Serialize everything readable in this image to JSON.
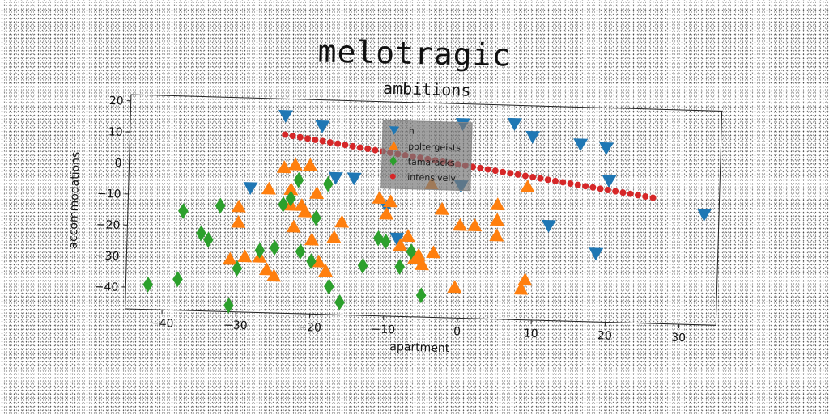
{
  "page": {
    "title": "melotragic"
  },
  "chart_data": {
    "type": "scatter",
    "title": "ambitions",
    "xlabel": "apartment",
    "ylabel": "accommodations",
    "xlim": [
      -45,
      35
    ],
    "ylim": [
      -47,
      22
    ],
    "xticks": [
      -40,
      -30,
      -20,
      -10,
      0,
      10,
      20,
      30
    ],
    "yticks": [
      20,
      10,
      0,
      -10,
      -20,
      -30,
      -40
    ],
    "grid": false,
    "legend_position": "top-center",
    "series": [
      {
        "name": "h",
        "marker": "triangle-down",
        "color": "#1f77b4",
        "x": [
          -24,
          -19,
          -28.5,
          -17,
          -14.5,
          0,
          0,
          7,
          9.5,
          16,
          19.5,
          20,
          12,
          33,
          18.5,
          -10,
          -8.5
        ],
        "y": [
          16.5,
          13.5,
          -7,
          -3,
          -3,
          15.5,
          -4.5,
          16,
          12,
          10,
          9,
          -1.5,
          -16.5,
          -11.5,
          -25,
          -12,
          -22
        ]
      },
      {
        "name": "poltergeists",
        "marker": "triangle-up",
        "color": "#ff7f0e",
        "x": [
          -24,
          -22.5,
          -20.5,
          -26,
          -23,
          -23,
          -21.5,
          -21,
          -19.5,
          -30,
          -30,
          -31,
          -29,
          -27,
          -26,
          -22.5,
          -20,
          -19,
          -18,
          -17,
          -16,
          -11,
          -9.5,
          -10,
          -8,
          -7,
          -5.5,
          -3.5,
          -2.5,
          0,
          2,
          5,
          5,
          5,
          8.5,
          9,
          9,
          -4,
          -5,
          -6,
          -0.5,
          -25
        ],
        "y": [
          0,
          1,
          1,
          -7,
          -7,
          -12,
          -12,
          -14,
          -8,
          -13,
          -18,
          -30,
          -29,
          -29,
          -33,
          -19,
          -23,
          -30,
          -33,
          -22,
          -17,
          -9,
          -10,
          -14,
          -24,
          -21,
          -27,
          -26,
          -12,
          -17,
          -17,
          -10,
          -15,
          -20,
          -37,
          -34,
          -4,
          -4,
          -30,
          -28,
          -37,
          -35
        ]
      },
      {
        "name": "tamaracks",
        "marker": "diamond",
        "color": "#2ca02c",
        "x": [
          -42,
          -38,
          -37.5,
          -35,
          -34,
          -32.5,
          -31,
          -30,
          -27,
          -25,
          -24,
          -22,
          -21.5,
          -20,
          -19.5,
          -17.5,
          -18,
          -16,
          -13,
          -11,
          -10,
          -8,
          -6.5,
          -5,
          -23
        ],
        "y": [
          -39,
          -37,
          -15,
          -22,
          -24,
          -13,
          -45,
          -33,
          -27,
          -26,
          -12,
          -4,
          -27,
          -30,
          -16,
          -38,
          -5,
          -43,
          -31,
          -22,
          -23,
          -31,
          -26,
          -40,
          -10
        ]
      },
      {
        "name": "intensively",
        "marker": "circle",
        "color": "#d62728",
        "line_from": [
          -24,
          10.5
        ],
        "line_to": [
          26,
          -6.5
        ],
        "point_count": 50
      }
    ]
  }
}
